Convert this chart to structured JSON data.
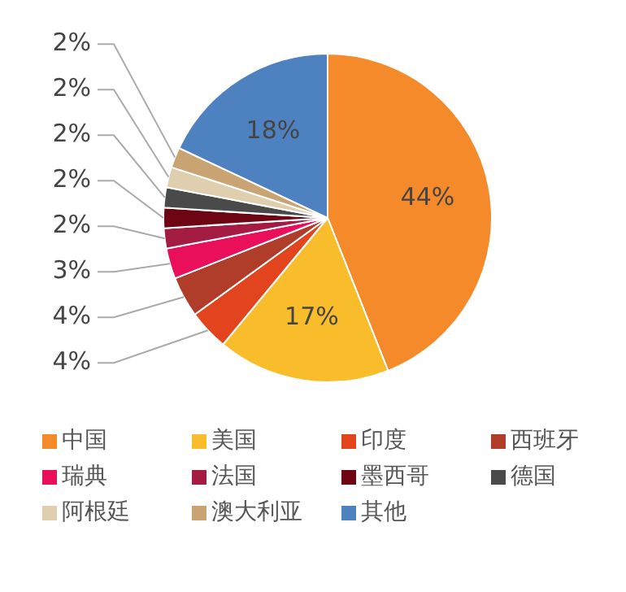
{
  "chart_data": {
    "type": "pie",
    "categories": [
      "中国",
      "美国",
      "印度",
      "西班牙",
      "瑞典",
      "法国",
      "墨西哥",
      "德国",
      "阿根廷",
      "澳大利亚",
      "其他"
    ],
    "values": [
      44,
      17,
      4,
      4,
      3,
      2,
      2,
      2,
      2,
      2,
      18
    ],
    "value_labels": [
      "44%",
      "17%",
      "4%",
      "4%",
      "3%",
      "2%",
      "2%",
      "2%",
      "2%",
      "2%",
      "18%"
    ],
    "colors": [
      "#f58a2a",
      "#f9bd2c",
      "#e2451d",
      "#b03c2a",
      "#ea0f5a",
      "#a51c43",
      "#6e0512",
      "#4a4a4a",
      "#e0cfae",
      "#c9a472",
      "#4e81c0"
    ],
    "legend": "bottom"
  }
}
